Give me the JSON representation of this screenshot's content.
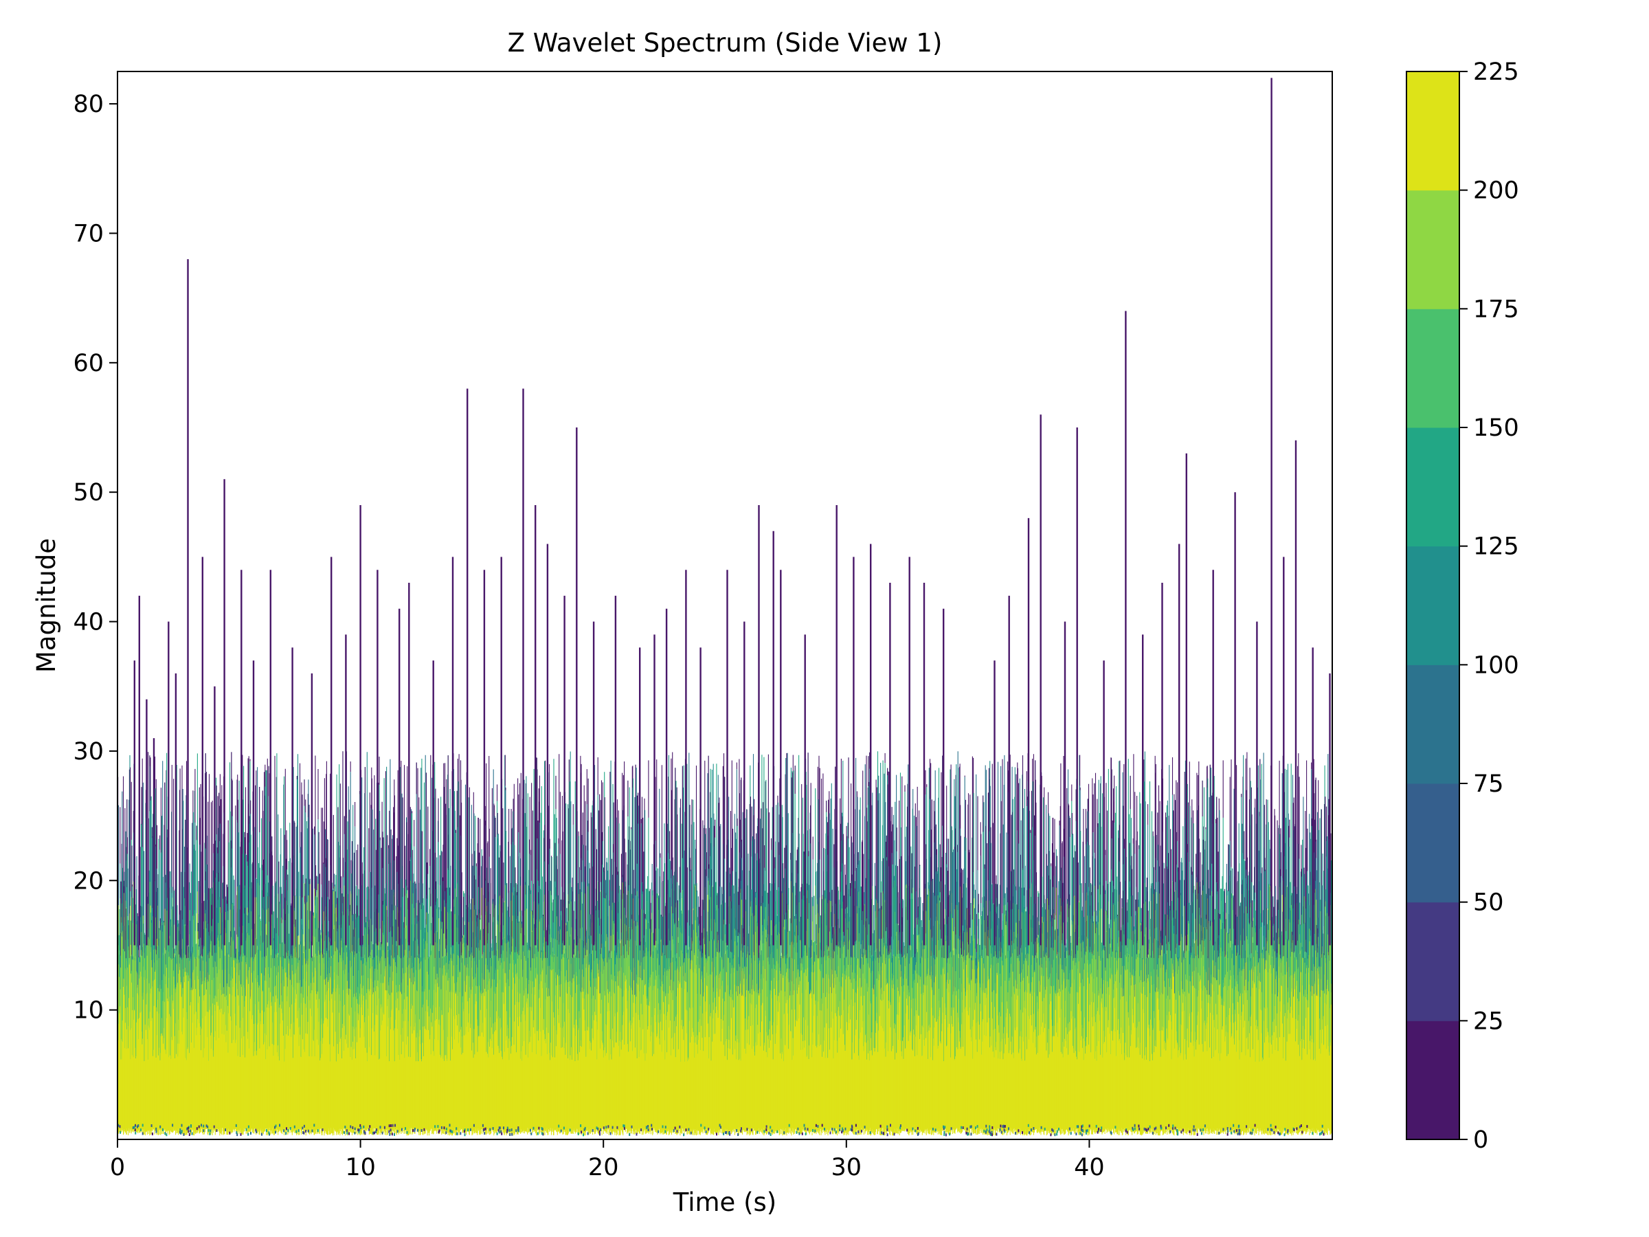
{
  "chart_data": {
    "type": "heatmap",
    "title": "Z Wavelet Spectrum (Side View 1)",
    "xlabel": "Time (s)",
    "ylabel": "Magnitude",
    "xlim": [
      0,
      50
    ],
    "ylim": [
      0,
      82.5
    ],
    "x_ticks": [
      0,
      10,
      20,
      30,
      40
    ],
    "y_ticks": [
      10,
      20,
      30,
      40,
      50,
      60,
      70,
      80
    ],
    "grid": false,
    "colorbar": {
      "levels": [
        0,
        25,
        50,
        75,
        100,
        125,
        150,
        175,
        200,
        225
      ],
      "colors": [
        "#481769",
        "#443a83",
        "#355f8d",
        "#2c738e",
        "#21908d",
        "#22a785",
        "#4ac16d",
        "#8fd744",
        "#dde318"
      ]
    },
    "peaks": [
      {
        "t": 0.0,
        "m": 28
      },
      {
        "t": 0.7,
        "m": 37
      },
      {
        "t": 0.9,
        "m": 42
      },
      {
        "t": 1.2,
        "m": 34
      },
      {
        "t": 1.5,
        "m": 31
      },
      {
        "t": 2.1,
        "m": 40
      },
      {
        "t": 2.4,
        "m": 36
      },
      {
        "t": 2.9,
        "m": 68
      },
      {
        "t": 3.5,
        "m": 45
      },
      {
        "t": 4.0,
        "m": 35
      },
      {
        "t": 4.4,
        "m": 51
      },
      {
        "t": 5.1,
        "m": 44
      },
      {
        "t": 5.6,
        "m": 37
      },
      {
        "t": 6.3,
        "m": 44
      },
      {
        "t": 7.2,
        "m": 38
      },
      {
        "t": 8.0,
        "m": 36
      },
      {
        "t": 8.8,
        "m": 45
      },
      {
        "t": 9.4,
        "m": 39
      },
      {
        "t": 10.0,
        "m": 49
      },
      {
        "t": 10.7,
        "m": 44
      },
      {
        "t": 11.6,
        "m": 41
      },
      {
        "t": 12.0,
        "m": 43
      },
      {
        "t": 13.0,
        "m": 37
      },
      {
        "t": 13.8,
        "m": 45
      },
      {
        "t": 14.4,
        "m": 58
      },
      {
        "t": 15.1,
        "m": 44
      },
      {
        "t": 15.8,
        "m": 45
      },
      {
        "t": 16.7,
        "m": 58
      },
      {
        "t": 17.2,
        "m": 49
      },
      {
        "t": 17.7,
        "m": 46
      },
      {
        "t": 18.4,
        "m": 42
      },
      {
        "t": 18.9,
        "m": 55
      },
      {
        "t": 19.6,
        "m": 40
      },
      {
        "t": 20.5,
        "m": 42
      },
      {
        "t": 21.5,
        "m": 38
      },
      {
        "t": 22.1,
        "m": 39
      },
      {
        "t": 22.6,
        "m": 41
      },
      {
        "t": 23.4,
        "m": 44
      },
      {
        "t": 24.0,
        "m": 38
      },
      {
        "t": 25.1,
        "m": 44
      },
      {
        "t": 25.8,
        "m": 40
      },
      {
        "t": 26.4,
        "m": 49
      },
      {
        "t": 27.0,
        "m": 47
      },
      {
        "t": 27.3,
        "m": 44
      },
      {
        "t": 28.3,
        "m": 39
      },
      {
        "t": 29.6,
        "m": 49
      },
      {
        "t": 30.3,
        "m": 45
      },
      {
        "t": 31.0,
        "m": 46
      },
      {
        "t": 31.8,
        "m": 43
      },
      {
        "t": 32.6,
        "m": 45
      },
      {
        "t": 33.2,
        "m": 43
      },
      {
        "t": 34.0,
        "m": 41
      },
      {
        "t": 36.1,
        "m": 37
      },
      {
        "t": 36.7,
        "m": 42
      },
      {
        "t": 37.5,
        "m": 48
      },
      {
        "t": 38.0,
        "m": 56
      },
      {
        "t": 39.0,
        "m": 40
      },
      {
        "t": 39.5,
        "m": 55
      },
      {
        "t": 40.6,
        "m": 37
      },
      {
        "t": 41.5,
        "m": 64
      },
      {
        "t": 42.2,
        "m": 39
      },
      {
        "t": 43.0,
        "m": 43
      },
      {
        "t": 43.7,
        "m": 46
      },
      {
        "t": 44.0,
        "m": 53
      },
      {
        "t": 45.1,
        "m": 44
      },
      {
        "t": 46.0,
        "m": 50
      },
      {
        "t": 46.9,
        "m": 40
      },
      {
        "t": 47.5,
        "m": 82
      },
      {
        "t": 48.0,
        "m": 45
      },
      {
        "t": 48.5,
        "m": 54
      },
      {
        "t": 49.2,
        "m": 38
      },
      {
        "t": 49.9,
        "m": 36
      }
    ]
  }
}
